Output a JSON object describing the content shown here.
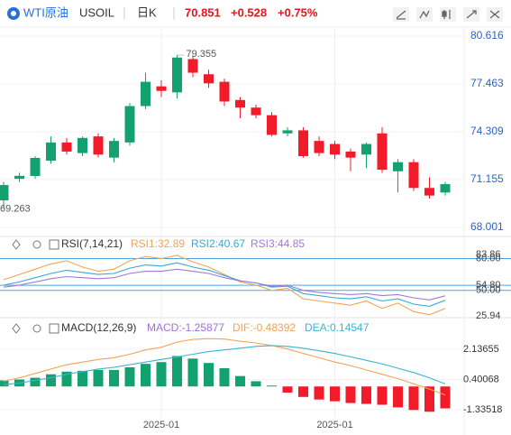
{
  "header": {
    "name": "WTI原油",
    "symbol": "USOIL",
    "period": "日K",
    "price": "70.851",
    "change": "+0.528",
    "change_pct": "+0.75%"
  },
  "chart_data": [
    {
      "type": "candlestick",
      "up_color": "#13a26f",
      "down_color": "#f21b2a",
      "open": [
        69.78,
        71.2,
        71.39,
        72.4,
        73.6,
        72.9,
        74.0,
        72.6,
        73.6,
        76.0,
        77.3,
        76.9,
        79.1,
        78.1,
        77.6,
        76.4,
        75.9,
        75.4,
        74.2,
        74.4,
        73.7,
        73.5,
        73.0,
        72.8,
        74.2,
        71.7,
        72.3,
        70.6,
        70.3
      ],
      "high": [
        71.0,
        71.6,
        72.7,
        74.0,
        73.9,
        74.0,
        74.2,
        73.9,
        76.2,
        78.2,
        77.7,
        79.355,
        79.3,
        78.4,
        77.8,
        76.6,
        76.1,
        75.6,
        74.6,
        74.6,
        74.0,
        73.7,
        73.2,
        73.6,
        74.6,
        72.5,
        72.5,
        71.3,
        71.0
      ],
      "low": [
        69.263,
        71.0,
        71.2,
        72.2,
        72.8,
        72.7,
        72.6,
        72.3,
        73.4,
        75.8,
        76.6,
        76.5,
        77.9,
        77.2,
        76.0,
        75.2,
        75.2,
        74.0,
        74.0,
        72.6,
        72.7,
        72.5,
        71.7,
        71.9,
        71.6,
        70.3,
        70.4,
        69.9,
        70.1
      ],
      "close": [
        70.79,
        71.4,
        72.58,
        73.6,
        73.0,
        73.9,
        72.8,
        73.7,
        76.0,
        77.6,
        77.0,
        79.2,
        78.2,
        77.5,
        76.3,
        75.9,
        75.4,
        74.1,
        74.4,
        72.7,
        72.9,
        72.8,
        72.6,
        73.5,
        71.8,
        72.3,
        70.6,
        70.1,
        70.85
      ],
      "ylim": [
        67.64,
        81.09
      ],
      "yticks": [
        80.616,
        77.463,
        74.309,
        71.155,
        68.001
      ],
      "annotations": [
        {
          "text": "79.355"
        },
        {
          "text": "69.263"
        }
      ]
    },
    {
      "type": "line",
      "title": "RSI(7,14,21)",
      "series": [
        {
          "name": "RSI1:32.89",
          "color": "#f2a454",
          "values": [
            60,
            65,
            70,
            75,
            78,
            72,
            68,
            70,
            78,
            82,
            80,
            83,
            77,
            72,
            65,
            58,
            55,
            50,
            52,
            42,
            40,
            38,
            36,
            40,
            33,
            38,
            30,
            27,
            32.89
          ]
        },
        {
          "name": "RSI2:40.67",
          "color": "#38a9d6",
          "values": [
            55,
            58,
            62,
            66,
            69,
            67,
            65,
            66,
            71,
            74,
            73,
            76,
            72,
            69,
            64,
            59,
            57,
            53,
            54,
            47,
            45,
            43,
            42,
            44,
            40,
            42,
            37,
            35,
            40.67
          ]
        },
        {
          "name": "RSI3:44.85",
          "color": "#a07ad8",
          "values": [
            53,
            55,
            58,
            61,
            63,
            62,
            61,
            62,
            66,
            68,
            68,
            70,
            68,
            66,
            62,
            59,
            57,
            54,
            55,
            50,
            48,
            47,
            46,
            47,
            45,
            46,
            43,
            41,
            44.85
          ]
        }
      ],
      "ylim": [
        25.94,
        83.86
      ],
      "yticks": [
        83.86,
        {
          "value": 80,
          "label": "80.00"
        },
        {
          "value": 54.8,
          "label": "54.80"
        },
        {
          "value": 50,
          "label": "50.00"
        },
        25.94
      ],
      "grid_color": "#4da3e8"
    },
    {
      "type": "macd",
      "title": "MACD(12,26,9)",
      "categories": [
        null,
        null,
        null,
        null,
        null,
        null,
        null,
        null,
        null,
        null,
        "2025-01",
        null,
        null,
        null,
        null,
        null,
        null,
        null,
        null,
        null,
        null,
        "2025-01",
        null,
        null,
        null,
        null,
        null,
        null,
        null
      ],
      "histogram": {
        "name": "MACD:-1.25877",
        "color": "#a070d8",
        "up_color": "#13a26f",
        "down_color": "#f21b2a",
        "values": [
          0.35,
          0.4,
          0.5,
          0.7,
          0.85,
          0.9,
          0.95,
          0.95,
          1.1,
          1.3,
          1.4,
          1.75,
          1.6,
          1.35,
          1.05,
          0.6,
          0.3,
          0.05,
          -0.35,
          -0.6,
          -0.75,
          -0.85,
          -0.95,
          -1.0,
          -1.05,
          -1.2,
          -1.35,
          -1.45,
          -1.25877
        ]
      },
      "series": [
        {
          "name": "DIF:-0.48392",
          "color": "#f2a454",
          "values": [
            0.3,
            0.5,
            0.75,
            1.0,
            1.25,
            1.4,
            1.55,
            1.65,
            1.85,
            2.1,
            2.25,
            2.55,
            2.7,
            2.75,
            2.72,
            2.6,
            2.5,
            2.35,
            2.15,
            1.9,
            1.65,
            1.4,
            1.2,
            0.95,
            0.7,
            0.45,
            0.15,
            -0.15,
            -0.48392
          ]
        },
        {
          "name": "DEA:0.14547",
          "color": "#38b6d0",
          "values": [
            0.1,
            0.2,
            0.35,
            0.5,
            0.7,
            0.85,
            1.0,
            1.1,
            1.25,
            1.4,
            1.55,
            1.7,
            1.85,
            2.0,
            2.1,
            2.2,
            2.3,
            2.35,
            2.3,
            2.2,
            2.05,
            1.9,
            1.7,
            1.5,
            1.3,
            1.05,
            0.8,
            0.5,
            0.14547
          ]
        }
      ],
      "ylim": [
        -1.75,
        3.95
      ],
      "yticks": [
        2.13655,
        0.40068,
        -1.33518
      ]
    }
  ]
}
